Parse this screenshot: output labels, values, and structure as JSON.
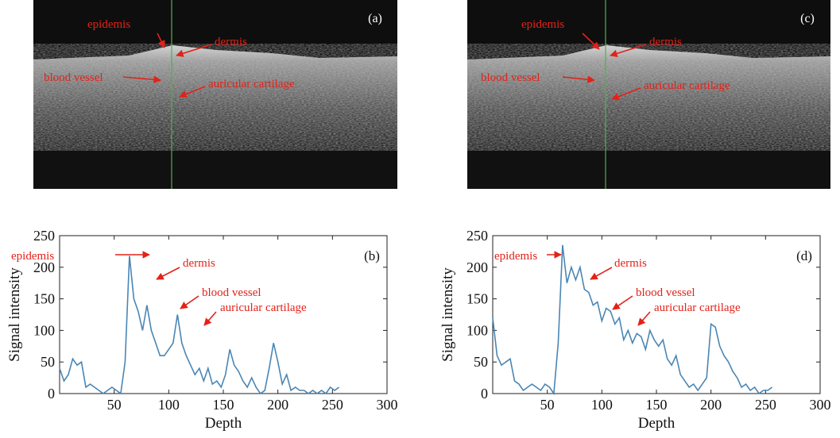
{
  "images": [
    {
      "label": "(a)",
      "annotations": [
        "epidemis",
        "dermis",
        "blood vessel",
        "auricular cartilage"
      ]
    },
    {
      "label": "(c)",
      "annotations": [
        "epidemis",
        "dermis",
        "blood vessel",
        "auricular cartilage"
      ]
    }
  ],
  "chart_data": [
    {
      "type": "line",
      "panel_label": "(b)",
      "x_label": "Depth",
      "y_label": "Signal intensity",
      "annotations": [
        "epidemis",
        "dermis",
        "blood vessel",
        "auricular cartilage"
      ],
      "color": "#4a86b4",
      "x": [
        0,
        4,
        8,
        12,
        16,
        20,
        24,
        28,
        32,
        36,
        40,
        44,
        48,
        52,
        56,
        60,
        64,
        68,
        72,
        76,
        80,
        84,
        88,
        92,
        96,
        100,
        104,
        108,
        112,
        116,
        120,
        124,
        128,
        132,
        136,
        140,
        144,
        148,
        152,
        156,
        160,
        164,
        168,
        172,
        176,
        180,
        184,
        188,
        192,
        196,
        200,
        204,
        208,
        212,
        216,
        220,
        224,
        228,
        232,
        236,
        240,
        244,
        248,
        252,
        256
      ],
      "values": [
        40,
        20,
        30,
        55,
        45,
        50,
        10,
        15,
        10,
        5,
        0,
        5,
        10,
        5,
        0,
        50,
        218,
        150,
        130,
        100,
        140,
        100,
        80,
        60,
        60,
        70,
        80,
        125,
        80,
        60,
        45,
        30,
        40,
        20,
        40,
        15,
        20,
        10,
        30,
        70,
        45,
        35,
        20,
        10,
        25,
        10,
        0,
        5,
        40,
        80,
        50,
        15,
        30,
        5,
        10,
        5,
        5,
        0,
        5,
        0,
        5,
        0,
        10,
        5,
        10
      ],
      "xlim": [
        0,
        300
      ],
      "xticks": [
        50,
        100,
        150,
        200,
        250,
        300
      ],
      "ylim": [
        0,
        250
      ],
      "yticks": [
        0,
        50,
        100,
        150,
        200,
        250
      ]
    },
    {
      "type": "line",
      "panel_label": "(d)",
      "x_label": "Depth",
      "y_label": "Signal intensity",
      "annotations": [
        "epidemis",
        "dermis",
        "blood vessel",
        "auricular cartilage"
      ],
      "color": "#4a86b4",
      "x": [
        0,
        4,
        8,
        12,
        16,
        20,
        24,
        28,
        32,
        36,
        40,
        44,
        48,
        52,
        56,
        60,
        64,
        68,
        72,
        76,
        80,
        84,
        88,
        92,
        96,
        100,
        104,
        108,
        112,
        116,
        120,
        124,
        128,
        132,
        136,
        140,
        144,
        148,
        152,
        156,
        160,
        164,
        168,
        172,
        176,
        180,
        184,
        188,
        192,
        196,
        200,
        204,
        208,
        212,
        216,
        220,
        224,
        228,
        232,
        236,
        240,
        244,
        248,
        252,
        256
      ],
      "values": [
        120,
        60,
        45,
        50,
        55,
        20,
        15,
        5,
        10,
        15,
        10,
        5,
        15,
        10,
        0,
        80,
        235,
        175,
        200,
        180,
        200,
        165,
        160,
        140,
        145,
        115,
        135,
        130,
        110,
        120,
        85,
        100,
        80,
        95,
        90,
        70,
        100,
        85,
        75,
        85,
        55,
        45,
        60,
        30,
        20,
        10,
        15,
        5,
        15,
        25,
        110,
        105,
        75,
        60,
        50,
        35,
        25,
        10,
        15,
        5,
        10,
        0,
        5,
        5,
        10
      ],
      "xlim": [
        0,
        300
      ],
      "xticks": [
        50,
        100,
        150,
        200,
        250,
        300
      ],
      "ylim": [
        0,
        250
      ],
      "yticks": [
        0,
        50,
        100,
        150,
        200,
        250
      ]
    }
  ]
}
